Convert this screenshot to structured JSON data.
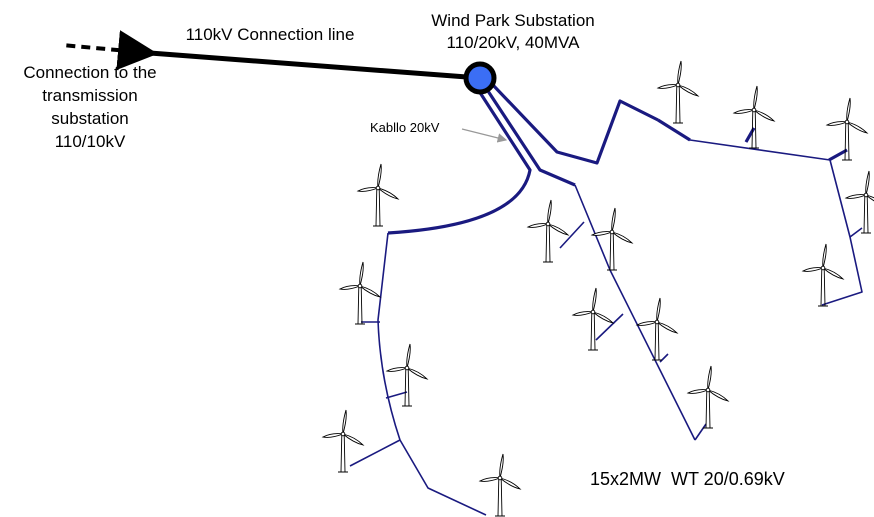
{
  "connection_line": "110kV Connection line",
  "substation": {
    "name": "Wind Park Substation",
    "rating": "110/20kV, 40MVA"
  },
  "transmission_connection": [
    "Connection to the",
    "transmission",
    "substation",
    "110/10kV"
  ],
  "cable_label": "Kabllo 20kV",
  "turbine_label": "15x2MW  WT 20/0.69kV"
}
